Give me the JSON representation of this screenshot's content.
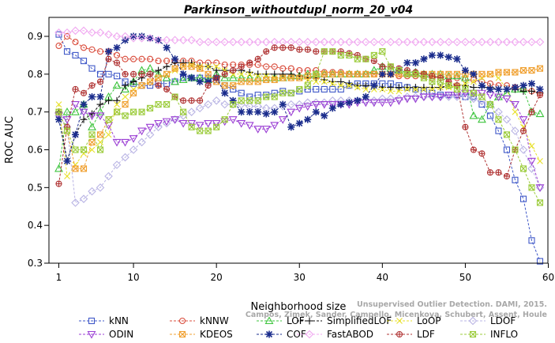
{
  "chart_data": {
    "type": "line",
    "title": "Parkinson_withoutdupl_norm_20_v04",
    "xlabel": "Neighborhood size",
    "ylabel": "ROC AUC",
    "xlim": [
      0,
      60
    ],
    "ylim": [
      0.3,
      0.95
    ],
    "xticks": [
      1,
      10,
      20,
      30,
      40,
      50,
      60
    ],
    "yticks": [
      0.3,
      0.4,
      0.5,
      0.6,
      0.7,
      0.8,
      0.9
    ],
    "grid": false,
    "legend_position": "bottom",
    "watermark_lines": [
      "Unsupervised Outlier Detection. DAMI, 2015.",
      "Campos, Zimek, Sander, Campello, Micenkova, Schubert, Assent, Houle"
    ],
    "x": [
      1,
      2,
      3,
      4,
      5,
      6,
      7,
      8,
      9,
      10,
      11,
      12,
      13,
      14,
      15,
      16,
      17,
      18,
      19,
      20,
      21,
      22,
      23,
      24,
      25,
      26,
      27,
      28,
      29,
      30,
      31,
      32,
      33,
      34,
      35,
      36,
      37,
      38,
      39,
      40,
      41,
      42,
      43,
      44,
      45,
      46,
      47,
      48,
      49,
      50,
      51,
      52,
      53,
      54,
      55,
      56,
      57,
      58,
      59
    ],
    "series": [
      {
        "name": "kNN",
        "color": "#3f58c8",
        "marker": "square",
        "values": [
          0.905,
          0.86,
          0.85,
          0.835,
          0.815,
          0.8,
          0.8,
          0.795,
          0.78,
          0.775,
          0.77,
          0.77,
          0.775,
          0.775,
          0.78,
          0.79,
          0.79,
          0.79,
          0.79,
          0.785,
          0.77,
          0.76,
          0.75,
          0.74,
          0.745,
          0.745,
          0.75,
          0.755,
          0.75,
          0.755,
          0.76,
          0.76,
          0.76,
          0.76,
          0.76,
          0.77,
          0.775,
          0.775,
          0.775,
          0.775,
          0.775,
          0.77,
          0.765,
          0.76,
          0.755,
          0.75,
          0.745,
          0.745,
          0.745,
          0.74,
          0.74,
          0.72,
          0.69,
          0.65,
          0.6,
          0.52,
          0.47,
          0.36,
          0.305
        ]
      },
      {
        "name": "kNNW",
        "color": "#d94c3c",
        "marker": "circle",
        "values": [
          0.875,
          0.9,
          0.885,
          0.87,
          0.865,
          0.86,
          0.86,
          0.85,
          0.84,
          0.84,
          0.84,
          0.84,
          0.835,
          0.835,
          0.835,
          0.835,
          0.835,
          0.83,
          0.83,
          0.83,
          0.825,
          0.825,
          0.825,
          0.825,
          0.825,
          0.82,
          0.82,
          0.815,
          0.815,
          0.81,
          0.81,
          0.81,
          0.805,
          0.805,
          0.805,
          0.8,
          0.8,
          0.8,
          0.8,
          0.8,
          0.8,
          0.795,
          0.795,
          0.795,
          0.795,
          0.79,
          0.79,
          0.79,
          0.79,
          0.785,
          0.785,
          0.78,
          0.775,
          0.77,
          0.77,
          0.765,
          0.76,
          0.755,
          0.75
        ]
      },
      {
        "name": "LOF",
        "color": "#3cc43c",
        "marker": "triangle",
        "values": [
          0.55,
          0.7,
          0.7,
          0.72,
          0.66,
          0.7,
          0.74,
          0.77,
          0.76,
          0.78,
          0.81,
          0.815,
          0.8,
          0.79,
          0.78,
          0.785,
          0.79,
          0.79,
          0.785,
          0.8,
          0.79,
          0.79,
          0.79,
          0.79,
          0.79,
          0.79,
          0.79,
          0.79,
          0.795,
          0.795,
          0.8,
          0.8,
          0.8,
          0.8,
          0.8,
          0.8,
          0.8,
          0.8,
          0.81,
          0.82,
          0.815,
          0.81,
          0.805,
          0.805,
          0.8,
          0.8,
          0.8,
          0.795,
          0.795,
          0.79,
          0.69,
          0.68,
          0.72,
          0.74,
          0.75,
          0.76,
          0.76,
          0.7,
          0.695
        ]
      },
      {
        "name": "SimplifiedLOF",
        "color": "#111111",
        "marker": "plus",
        "values": [
          0.7,
          0.57,
          0.64,
          0.68,
          0.695,
          0.72,
          0.73,
          0.73,
          0.77,
          0.78,
          0.79,
          0.8,
          0.81,
          0.82,
          0.83,
          0.83,
          0.83,
          0.82,
          0.82,
          0.81,
          0.81,
          0.81,
          0.81,
          0.805,
          0.8,
          0.8,
          0.8,
          0.8,
          0.8,
          0.795,
          0.79,
          0.79,
          0.785,
          0.78,
          0.78,
          0.775,
          0.77,
          0.77,
          0.77,
          0.765,
          0.765,
          0.765,
          0.765,
          0.765,
          0.765,
          0.765,
          0.765,
          0.77,
          0.77,
          0.77,
          0.765,
          0.765,
          0.765,
          0.76,
          0.76,
          0.76,
          0.755,
          0.755,
          0.75
        ]
      },
      {
        "name": "LoOP",
        "color": "#e8e02a",
        "marker": "x",
        "values": [
          0.72,
          0.53,
          0.56,
          0.59,
          0.6,
          0.62,
          0.64,
          0.72,
          0.74,
          0.76,
          0.77,
          0.78,
          0.79,
          0.8,
          0.81,
          0.82,
          0.825,
          0.82,
          0.82,
          0.82,
          0.81,
          0.8,
          0.8,
          0.8,
          0.795,
          0.795,
          0.79,
          0.79,
          0.79,
          0.79,
          0.785,
          0.78,
          0.78,
          0.775,
          0.77,
          0.77,
          0.765,
          0.76,
          0.76,
          0.76,
          0.755,
          0.755,
          0.76,
          0.76,
          0.76,
          0.76,
          0.765,
          0.765,
          0.77,
          0.775,
          0.78,
          0.79,
          0.8,
          0.79,
          0.76,
          0.7,
          0.66,
          0.61,
          0.57
        ]
      },
      {
        "name": "LDOF",
        "color": "#b9b4e4",
        "marker": "diamond",
        "values": [
          0.69,
          0.66,
          0.46,
          0.47,
          0.49,
          0.5,
          0.53,
          0.56,
          0.58,
          0.6,
          0.62,
          0.64,
          0.66,
          0.67,
          0.68,
          0.69,
          0.7,
          0.71,
          0.72,
          0.73,
          0.72,
          0.72,
          0.72,
          0.715,
          0.715,
          0.71,
          0.71,
          0.715,
          0.72,
          0.72,
          0.725,
          0.725,
          0.725,
          0.73,
          0.73,
          0.73,
          0.73,
          0.73,
          0.73,
          0.735,
          0.735,
          0.735,
          0.74,
          0.74,
          0.74,
          0.74,
          0.74,
          0.74,
          0.74,
          0.74,
          0.735,
          0.73,
          0.72,
          0.7,
          0.68,
          0.65,
          0.6,
          0.55,
          0.5
        ]
      },
      {
        "name": "ODIN",
        "color": "#9b3fd4",
        "marker": "triangle-down",
        "values": [
          0.69,
          0.68,
          0.72,
          0.7,
          0.69,
          0.69,
          0.665,
          0.62,
          0.62,
          0.63,
          0.65,
          0.66,
          0.67,
          0.675,
          0.68,
          0.67,
          0.67,
          0.665,
          0.67,
          0.67,
          0.675,
          0.68,
          0.67,
          0.665,
          0.655,
          0.655,
          0.665,
          0.68,
          0.7,
          0.71,
          0.715,
          0.72,
          0.72,
          0.72,
          0.72,
          0.72,
          0.725,
          0.725,
          0.725,
          0.725,
          0.725,
          0.73,
          0.735,
          0.735,
          0.74,
          0.74,
          0.74,
          0.745,
          0.745,
          0.75,
          0.75,
          0.75,
          0.745,
          0.74,
          0.735,
          0.72,
          0.68,
          0.57,
          0.5
        ]
      },
      {
        "name": "KDEOS",
        "color": "#f0a030",
        "marker": "square-x",
        "values": [
          0.7,
          0.65,
          0.55,
          0.55,
          0.62,
          0.64,
          0.68,
          0.7,
          0.72,
          0.75,
          0.77,
          0.78,
          0.79,
          0.8,
          0.815,
          0.82,
          0.82,
          0.815,
          0.8,
          0.78,
          0.77,
          0.77,
          0.78,
          0.78,
          0.78,
          0.785,
          0.785,
          0.79,
          0.79,
          0.79,
          0.795,
          0.795,
          0.8,
          0.8,
          0.8,
          0.8,
          0.8,
          0.8,
          0.8,
          0.8,
          0.8,
          0.8,
          0.8,
          0.8,
          0.8,
          0.8,
          0.8,
          0.8,
          0.8,
          0.8,
          0.8,
          0.8,
          0.8,
          0.805,
          0.805,
          0.805,
          0.81,
          0.81,
          0.815
        ]
      },
      {
        "name": "COF",
        "color": "#1a2c8c",
        "marker": "star",
        "values": [
          0.68,
          0.57,
          0.64,
          0.72,
          0.74,
          0.74,
          0.86,
          0.87,
          0.89,
          0.9,
          0.9,
          0.895,
          0.89,
          0.87,
          0.84,
          0.8,
          0.79,
          0.78,
          0.78,
          0.79,
          0.75,
          0.73,
          0.7,
          0.7,
          0.7,
          0.695,
          0.7,
          0.72,
          0.66,
          0.67,
          0.68,
          0.7,
          0.69,
          0.71,
          0.72,
          0.725,
          0.73,
          0.74,
          0.77,
          0.8,
          0.8,
          0.81,
          0.83,
          0.83,
          0.84,
          0.85,
          0.85,
          0.845,
          0.84,
          0.81,
          0.8,
          0.77,
          0.76,
          0.76,
          0.76,
          0.765,
          0.77,
          0.775,
          0.76
        ]
      },
      {
        "name": "FastABOD",
        "color": "#f0a8f0",
        "marker": "diamond",
        "values": [
          0.91,
          0.91,
          0.915,
          0.915,
          0.91,
          0.91,
          0.905,
          0.9,
          0.9,
          0.895,
          0.895,
          0.895,
          0.89,
          0.89,
          0.89,
          0.89,
          0.89,
          0.885,
          0.885,
          0.885,
          0.885,
          0.885,
          0.885,
          0.885,
          0.885,
          0.885,
          0.885,
          0.885,
          0.885,
          0.885,
          0.885,
          0.885,
          0.885,
          0.885,
          0.885,
          0.885,
          0.885,
          0.885,
          0.885,
          0.885,
          0.885,
          0.885,
          0.885,
          0.885,
          0.885,
          0.885,
          0.885,
          0.885,
          0.885,
          0.885,
          0.885,
          0.885,
          0.885,
          0.885,
          0.885,
          0.885,
          0.885,
          0.885,
          0.885
        ]
      },
      {
        "name": "LDF",
        "color": "#b03434",
        "marker": "circle-plus",
        "values": [
          0.51,
          0.66,
          0.76,
          0.75,
          0.77,
          0.78,
          0.84,
          0.83,
          0.8,
          0.8,
          0.8,
          0.8,
          0.77,
          0.76,
          0.74,
          0.73,
          0.73,
          0.73,
          0.77,
          0.79,
          0.8,
          0.81,
          0.82,
          0.83,
          0.84,
          0.86,
          0.87,
          0.87,
          0.87,
          0.865,
          0.865,
          0.86,
          0.86,
          0.86,
          0.86,
          0.855,
          0.85,
          0.84,
          0.835,
          0.82,
          0.82,
          0.815,
          0.81,
          0.805,
          0.8,
          0.795,
          0.79,
          0.78,
          0.77,
          0.66,
          0.6,
          0.59,
          0.54,
          0.54,
          0.53,
          0.6,
          0.65,
          0.7,
          0.745
        ]
      },
      {
        "name": "INFLO",
        "color": "#9ccc3c",
        "marker": "square-x",
        "values": [
          0.7,
          0.65,
          0.6,
          0.6,
          0.64,
          0.6,
          0.68,
          0.7,
          0.69,
          0.7,
          0.7,
          0.71,
          0.72,
          0.72,
          0.74,
          0.7,
          0.66,
          0.65,
          0.65,
          0.66,
          0.68,
          0.72,
          0.73,
          0.73,
          0.73,
          0.74,
          0.74,
          0.75,
          0.75,
          0.76,
          0.77,
          0.8,
          0.86,
          0.86,
          0.85,
          0.85,
          0.84,
          0.84,
          0.85,
          0.86,
          0.82,
          0.81,
          0.8,
          0.8,
          0.79,
          0.78,
          0.78,
          0.77,
          0.76,
          0.76,
          0.75,
          0.74,
          0.72,
          0.68,
          0.64,
          0.6,
          0.55,
          0.5,
          0.46
        ]
      }
    ]
  }
}
